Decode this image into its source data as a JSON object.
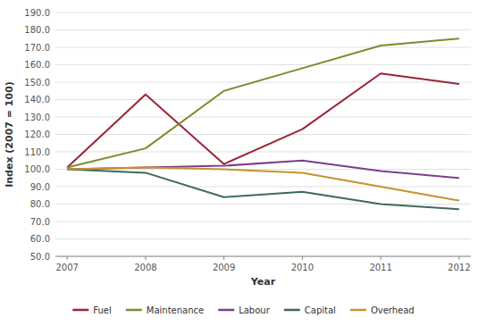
{
  "chart_data": {
    "type": "line",
    "xlabel": "Year",
    "ylabel": "Index (2007 = 100)",
    "x": [
      2007,
      2008,
      2009,
      2010,
      2011,
      2012
    ],
    "series": [
      {
        "name": "Fuel",
        "color": "#9B2335",
        "values": [
          101,
          143,
          103,
          123,
          155,
          149
        ]
      },
      {
        "name": "Maintenance",
        "color": "#7B8B2B",
        "values": [
          101,
          112,
          145,
          158,
          171,
          175
        ]
      },
      {
        "name": "Labour",
        "color": "#7B3F8C",
        "values": [
          100,
          101,
          102,
          105,
          99,
          95
        ]
      },
      {
        "name": "Capital",
        "color": "#3D6B5A",
        "values": [
          100,
          98,
          84,
          87,
          80,
          77
        ]
      },
      {
        "name": "Overhead",
        "color": "#C8922A",
        "values": [
          100,
          101,
          100,
          98,
          90,
          82
        ]
      }
    ],
    "xlim": [
      2006.85,
      2012.15
    ],
    "xticks": [
      2007,
      2008,
      2009,
      2010,
      2011,
      2012
    ],
    "ylim": [
      50.0,
      190.0
    ],
    "yticks": [
      {
        "value": 50.0,
        "label": "50.0"
      },
      {
        "value": 60.0,
        "label": "60.0"
      },
      {
        "value": 70.0,
        "label": "70.0"
      },
      {
        "value": 80.0,
        "label": "80.0"
      },
      {
        "value": 90.0,
        "label": "90.0"
      },
      {
        "value": 100.0,
        "label": "100.0"
      },
      {
        "value": 110.0,
        "label": "110.0"
      },
      {
        "value": 120.0,
        "label": "120.0"
      },
      {
        "value": 130.0,
        "label": "130.0"
      },
      {
        "value": 140.0,
        "label": "140.0"
      },
      {
        "value": 150.0,
        "label": "150.0"
      },
      {
        "value": 160.0,
        "label": "160.0"
      },
      {
        "value": 170.0,
        "label": "170.0"
      },
      {
        "value": 180.0,
        "label": "180.0"
      },
      {
        "value": 190.0,
        "label": "190.0"
      }
    ],
    "grid": true,
    "legend": "bottom"
  }
}
